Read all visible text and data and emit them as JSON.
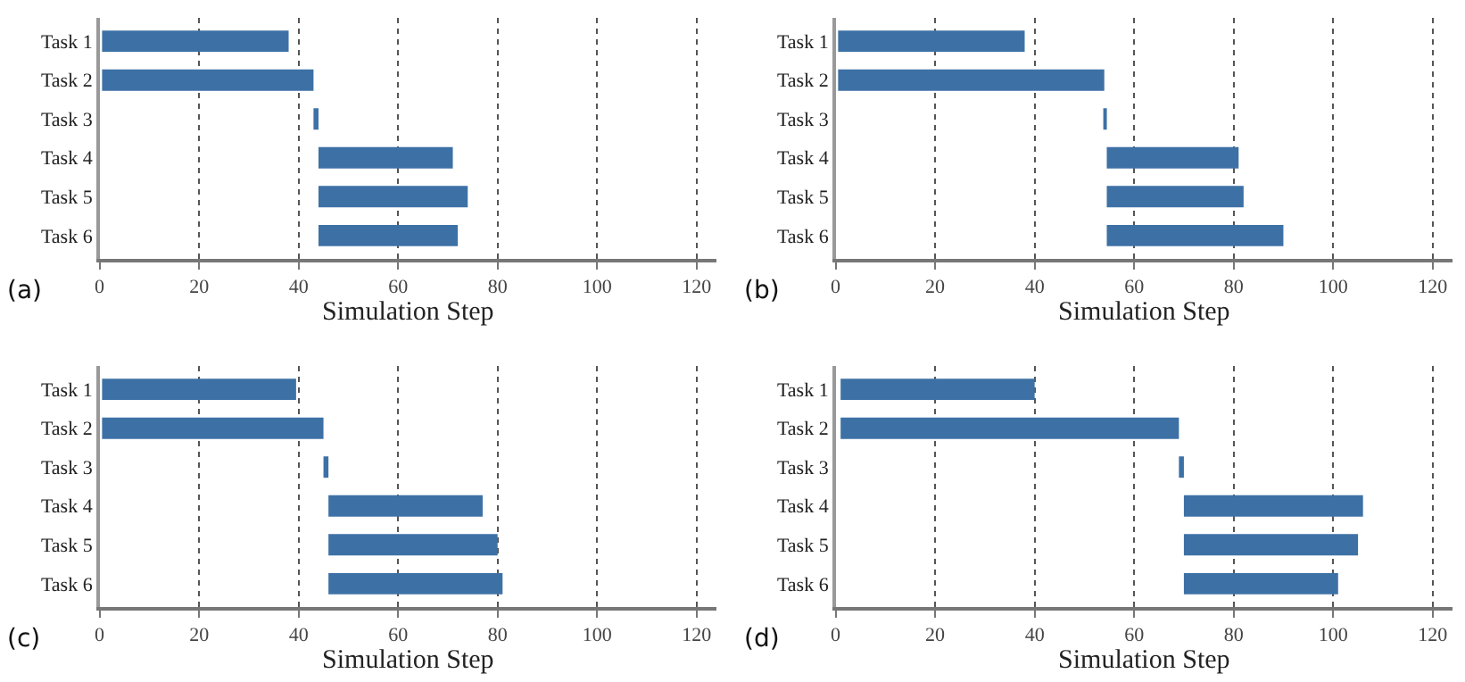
{
  "chart_data": [
    {
      "type": "bar",
      "orientation": "horizontal",
      "xlabel": "Simulation Step",
      "annotations": [
        "(a)"
      ],
      "grid": "x",
      "color": "#3d71a6",
      "categories": [
        "Task 1",
        "Task 2",
        "Task 3",
        "Task 4",
        "Task 5",
        "Task 6"
      ],
      "base": [
        0.5,
        0.5,
        43,
        44,
        44,
        44
      ],
      "values": [
        37.5,
        42.5,
        1,
        27,
        30,
        28
      ],
      "xlim": [
        0,
        124
      ],
      "xticks": [
        0,
        20,
        40,
        60,
        80,
        100,
        120
      ]
    },
    {
      "type": "bar",
      "orientation": "horizontal",
      "xlabel": "Simulation Step",
      "annotations": [
        "(b)"
      ],
      "grid": "x",
      "color": "#3d71a6",
      "categories": [
        "Task 1",
        "Task 2",
        "Task 3",
        "Task 4",
        "Task 5",
        "Task 6"
      ],
      "base": [
        0.5,
        0.5,
        54,
        54.5,
        54.5,
        54.5
      ],
      "values": [
        37.5,
        53.5,
        0.5,
        26.5,
        27.5,
        35.5
      ],
      "xlim": [
        0,
        124
      ],
      "xticks": [
        0,
        20,
        40,
        60,
        80,
        100,
        120
      ]
    },
    {
      "type": "bar",
      "orientation": "horizontal",
      "xlabel": "Simulation Step",
      "annotations": [
        "(c)"
      ],
      "grid": "x",
      "color": "#3d71a6",
      "categories": [
        "Task 1",
        "Task 2",
        "Task 3",
        "Task 4",
        "Task 5",
        "Task 6"
      ],
      "base": [
        0.5,
        0.5,
        45,
        46,
        46,
        46
      ],
      "values": [
        39,
        44.5,
        1,
        31,
        34,
        35
      ],
      "xlim": [
        0,
        124
      ],
      "xticks": [
        0,
        20,
        40,
        60,
        80,
        100,
        120
      ]
    },
    {
      "type": "bar",
      "orientation": "horizontal",
      "xlabel": "Simulation Step",
      "annotations": [
        "(d)"
      ],
      "grid": "x",
      "color": "#3d71a6",
      "categories": [
        "Task 1",
        "Task 2",
        "Task 3",
        "Task 4",
        "Task 5",
        "Task 6"
      ],
      "base": [
        1,
        1,
        69,
        70,
        70,
        70
      ],
      "values": [
        39,
        68,
        1,
        36,
        35,
        31
      ],
      "xlim": [
        0,
        124
      ],
      "xticks": [
        0,
        20,
        40,
        60,
        80,
        100,
        120
      ]
    }
  ]
}
